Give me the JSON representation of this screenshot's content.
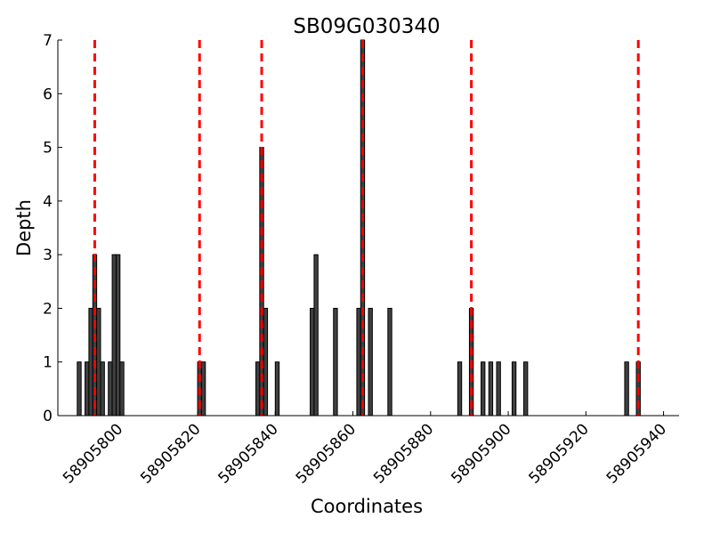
{
  "chart_data": {
    "type": "bar",
    "title": "SB09G030340",
    "xlabel": "Coordinates",
    "ylabel": "Depth",
    "xlim": [
      58905784,
      58905944
    ],
    "ylim": [
      0,
      7
    ],
    "x_ticks": [
      58905800,
      58905820,
      58905840,
      58905860,
      58905880,
      58905900,
      58905920,
      58905940
    ],
    "y_ticks": [
      0,
      1,
      2,
      3,
      4,
      5,
      6,
      7
    ],
    "bar_width": 1,
    "bar_color": "#404040",
    "marker_color": "#ff0000",
    "grid": false,
    "series": [
      {
        "x": [
          58905789,
          58905791,
          58905792,
          58905793,
          58905794,
          58905795,
          58905797,
          58905798,
          58905799,
          58905800,
          58905820,
          58905821,
          58905835,
          58905836,
          58905837,
          58905840,
          58905849,
          58905850,
          58905855,
          58905861,
          58905862,
          58905864,
          58905869,
          58905887,
          58905890,
          58905893,
          58905895,
          58905897,
          58905901,
          58905904,
          58905930,
          58905933
        ],
        "values": [
          1,
          1,
          2,
          3,
          2,
          1,
          1,
          3,
          3,
          1,
          1,
          1,
          1,
          5,
          2,
          1,
          2,
          3,
          2,
          2,
          7,
          2,
          2,
          1,
          2,
          1,
          1,
          1,
          1,
          1,
          1,
          1
        ]
      }
    ],
    "markers": [
      58905793.5,
      58905820.5,
      58905836.5,
      58905862.5,
      58905890.5,
      58905933.5
    ]
  }
}
